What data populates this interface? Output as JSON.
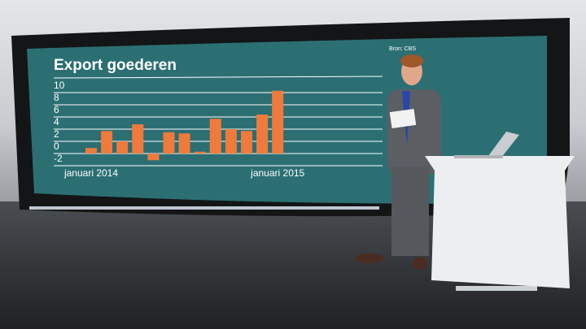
{
  "chart_data": {
    "type": "bar",
    "title": "Export goederen",
    "source": "Bron: CBS",
    "categories": [
      "januari 2014",
      null,
      null,
      null,
      null,
      null,
      null,
      null,
      null,
      null,
      null,
      null,
      "januari 2015"
    ],
    "values": [
      0.9,
      3.7,
      2,
      4.8,
      -1.1,
      3.5,
      3.3,
      0.3,
      5.7,
      4,
      3.7,
      6.4,
      10.3
    ],
    "color": "#f07a3c",
    "ylim": [
      -2,
      10
    ],
    "yticks": [
      -2,
      0,
      2,
      4,
      6,
      8,
      10
    ],
    "grid": true
  }
}
